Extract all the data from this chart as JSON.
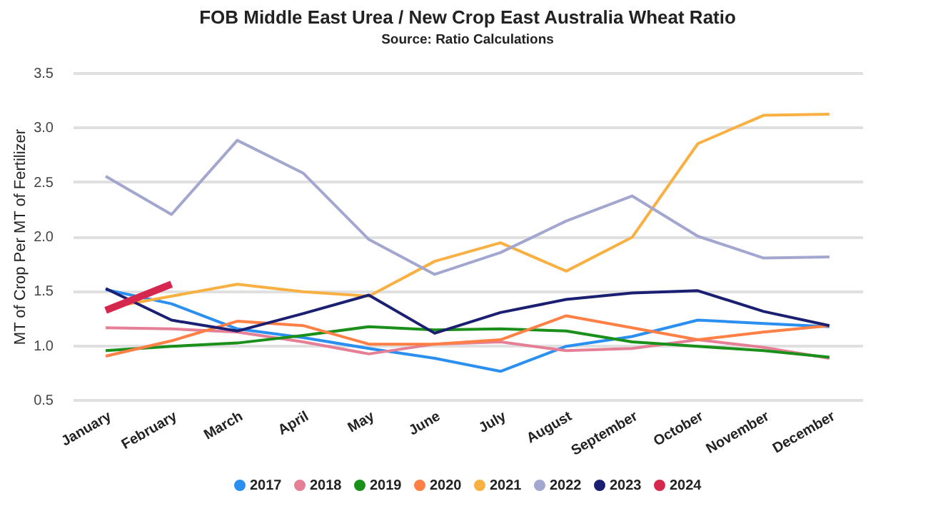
{
  "chart_data": {
    "type": "line",
    "title": "FOB Middle East Urea / New Crop East Australia Wheat Ratio",
    "subtitle": "Source: Ratio Calculations",
    "ylabel": "MT of Crop Per MT of Fertilizer",
    "categories": [
      "January",
      "February",
      "March",
      "April",
      "May",
      "June",
      "July",
      "August",
      "September",
      "October",
      "November",
      "December"
    ],
    "ylim": [
      0.5,
      3.5
    ],
    "yticks": [
      0.5,
      {
        "value": 1,
        "label": "1.0"
      },
      1.5,
      {
        "value": 2,
        "label": "2.0"
      },
      2.5,
      {
        "value": 3,
        "label": "3.0"
      },
      3.5
    ],
    "grid": "y",
    "legend": "bottom",
    "marker": "none",
    "series": [
      {
        "name": "2017",
        "color": "#2b8ff0",
        "values": [
          1.51,
          1.38,
          1.15,
          1.07,
          0.97,
          0.88,
          0.76,
          0.99,
          1.08,
          1.23,
          1.2,
          1.17
        ]
      },
      {
        "name": "2018",
        "color": "#e57f96",
        "values": [
          1.16,
          1.15,
          1.12,
          1.03,
          0.92,
          1.01,
          1.03,
          0.95,
          0.97,
          1.05,
          0.98,
          0.88
        ]
      },
      {
        "name": "2019",
        "color": "#1a8f1a",
        "values": [
          0.95,
          0.99,
          1.02,
          1.09,
          1.17,
          1.14,
          1.15,
          1.13,
          1.03,
          0.99,
          0.95,
          0.89
        ]
      },
      {
        "name": "2020",
        "color": "#ff7f45",
        "values": [
          0.9,
          1.04,
          1.22,
          1.18,
          1.01,
          1.01,
          1.05,
          1.27,
          1.16,
          1.05,
          1.12,
          1.18
        ]
      },
      {
        "name": "2021",
        "color": "#f9b042",
        "values": [
          1.34,
          1.45,
          1.56,
          1.49,
          1.45,
          1.77,
          1.94,
          1.68,
          1.99,
          2.85,
          3.11,
          3.12
        ]
      },
      {
        "name": "2022",
        "color": "#a3a7d0",
        "values": [
          2.55,
          2.2,
          2.88,
          2.58,
          1.97,
          1.65,
          1.85,
          2.14,
          2.37,
          2.0,
          1.8,
          1.81
        ]
      },
      {
        "name": "2023",
        "color": "#1b1f72",
        "values": [
          1.52,
          1.23,
          1.13,
          1.29,
          1.46,
          1.11,
          1.3,
          1.42,
          1.48,
          1.5,
          1.31,
          1.18
        ]
      },
      {
        "name": "2024",
        "color": "#d6284f",
        "values": [
          1.32,
          1.56,
          null,
          null,
          null,
          null,
          null,
          null,
          null,
          null,
          null,
          null
        ]
      }
    ]
  }
}
